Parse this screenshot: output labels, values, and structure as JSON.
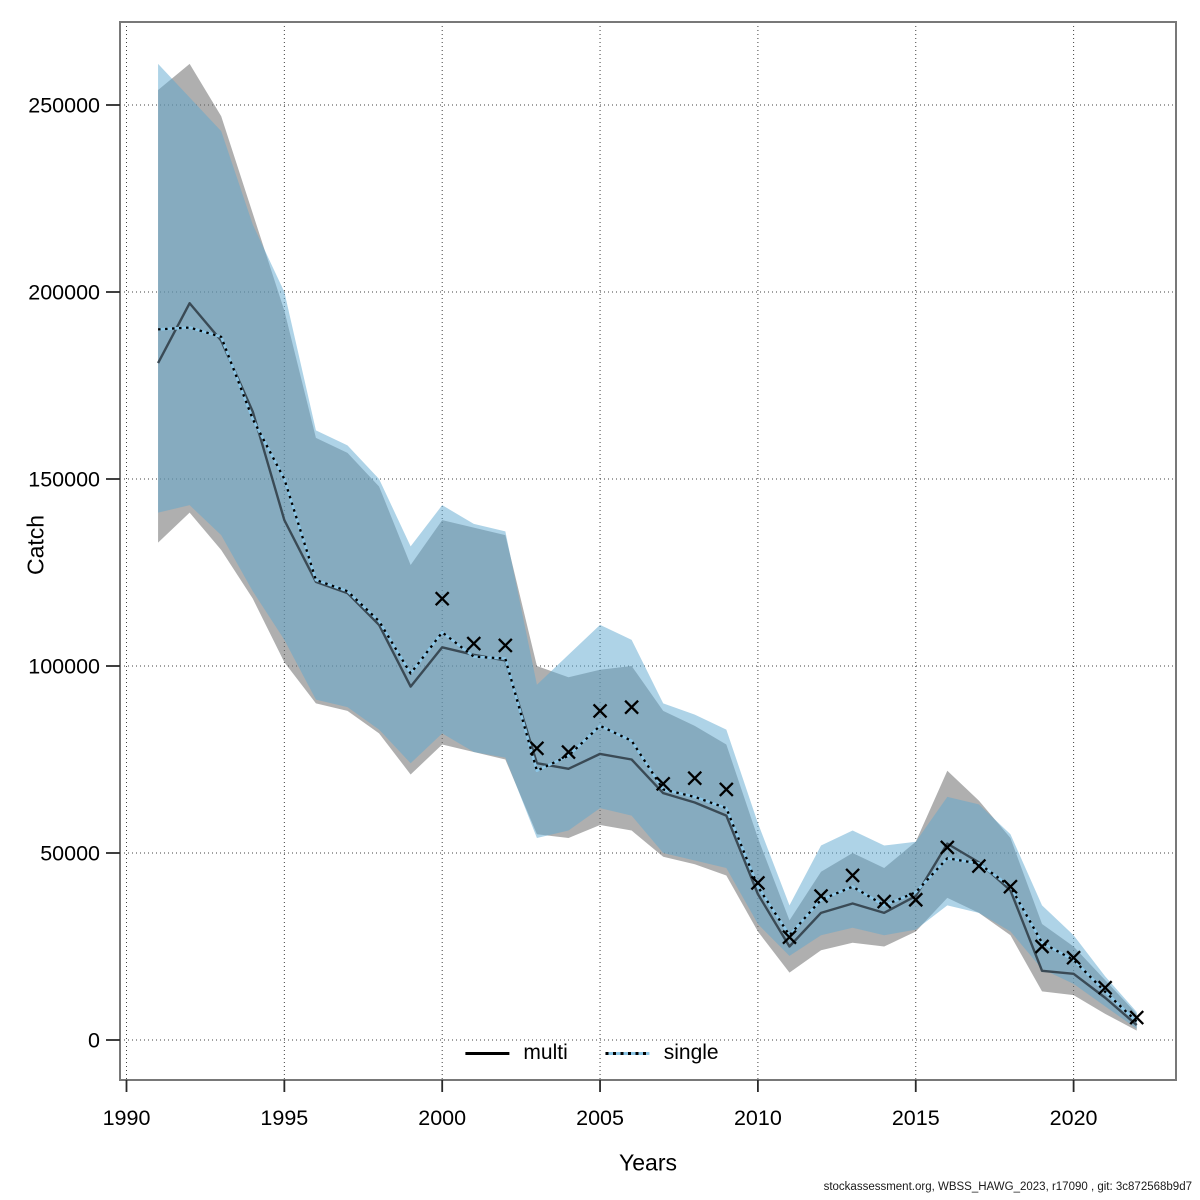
{
  "figure": {
    "y_axis_label": "Catch",
    "x_axis_label": "Years",
    "legend_multi_label": "multi",
    "legend_single_label": "single",
    "footer": "stockassessment.org, WBSS_HAWG_2023, r17090 , git: 3c872568b9d7"
  },
  "colors": {
    "multi_band": "#6e6e6e",
    "multi_band_opacity": 0.55,
    "single_band": "#5ea7d0",
    "single_band_opacity": 0.5,
    "multi_line": "#3a4a55",
    "single_line_base": "#8cc6e6",
    "dash_overlay": "#000000",
    "legend_multi_swatch": "#000000",
    "marker": "#000000",
    "grid": "#404040",
    "frame": "#787878",
    "tick": "#2a2a2a"
  },
  "chart_data": {
    "type": "line",
    "title": "",
    "xlabel": "Years",
    "ylabel": "Catch",
    "legend_position": "bottom-center-inside",
    "grid": "dotted",
    "x_ticks": [
      1990,
      1995,
      2000,
      2005,
      2010,
      2015,
      2020
    ],
    "y_ticks": [
      0,
      50000,
      100000,
      150000,
      200000,
      250000
    ],
    "xlim": [
      1989.8,
      2023.3
    ],
    "ylim": [
      -12000,
      273000
    ],
    "years": [
      1991,
      1992,
      1993,
      1994,
      1995,
      1996,
      1997,
      1998,
      1999,
      2000,
      2001,
      2002,
      2003,
      2004,
      2005,
      2006,
      2007,
      2008,
      2009,
      2010,
      2011,
      2012,
      2013,
      2014,
      2015,
      2016,
      2017,
      2018,
      2019,
      2020,
      2021,
      2022
    ],
    "series": [
      {
        "name": "multi",
        "style": "solid",
        "values": [
          181000,
          197000,
          187000,
          168000,
          139000,
          122500,
          119500,
          111000,
          94500,
          105000,
          103000,
          101500,
          74000,
          72500,
          76500,
          75000,
          66000,
          63500,
          60000,
          39000,
          25000,
          34000,
          36500,
          34000,
          38500,
          52500,
          47500,
          40000,
          18500,
          17700,
          11300,
          4000
        ],
        "ci_lower": [
          133000,
          141000,
          131000,
          118000,
          101000,
          90000,
          88000,
          82000,
          71000,
          79000,
          77000,
          75000,
          55000,
          54000,
          57500,
          56000,
          49000,
          47000,
          44000,
          29000,
          18000,
          24000,
          26000,
          25000,
          29000,
          38000,
          34000,
          28000,
          13000,
          12000,
          7000,
          2500
        ],
        "ci_upper": [
          254000,
          261000,
          247000,
          221000,
          195000,
          161000,
          157000,
          148000,
          127000,
          139000,
          137000,
          135000,
          100000,
          97000,
          99000,
          100000,
          88000,
          84000,
          79000,
          54000,
          32000,
          45000,
          50000,
          46000,
          53000,
          72000,
          64000,
          54000,
          31000,
          25000,
          16000,
          7000
        ]
      },
      {
        "name": "single",
        "style": "dotted",
        "values": [
          190000,
          190500,
          188000,
          166000,
          150000,
          123000,
          120000,
          112000,
          98000,
          109000,
          102500,
          102000,
          72000,
          76000,
          84000,
          80000,
          67000,
          65000,
          62000,
          41000,
          28000,
          37500,
          41000,
          36000,
          39500,
          48600,
          47200,
          41000,
          26000,
          21400,
          12900,
          4900
        ],
        "ci_lower": [
          141000,
          143000,
          135000,
          120000,
          107000,
          91000,
          89000,
          83000,
          74000,
          82000,
          77000,
          75500,
          54000,
          56000,
          62000,
          60000,
          50000,
          48000,
          46000,
          31000,
          22500,
          28000,
          30000,
          28000,
          29500,
          36000,
          34000,
          29000,
          19000,
          15000,
          9000,
          3000
        ],
        "ci_upper": [
          261000,
          252000,
          243000,
          218000,
          200000,
          163000,
          159000,
          150000,
          132000,
          143000,
          138000,
          136000,
          95000,
          103000,
          111000,
          107000,
          90000,
          87000,
          83000,
          58000,
          36000,
          52000,
          56000,
          52000,
          53000,
          65000,
          63000,
          55000,
          36000,
          28000,
          17000,
          7500
        ]
      }
    ],
    "observed": {
      "marker": "x",
      "years": [
        2000,
        2001,
        2002,
        2003,
        2004,
        2005,
        2006,
        2007,
        2008,
        2009,
        2010,
        2011,
        2012,
        2013,
        2014,
        2015,
        2016,
        2017,
        2018,
        2019,
        2020,
        2021,
        2022
      ],
      "values": [
        118000,
        106000,
        105500,
        78000,
        77000,
        88000,
        89000,
        68500,
        70000,
        67000,
        42000,
        27500,
        38500,
        44000,
        37000,
        37500,
        51500,
        46500,
        41000,
        25000,
        22000,
        14000,
        6000
      ]
    }
  }
}
